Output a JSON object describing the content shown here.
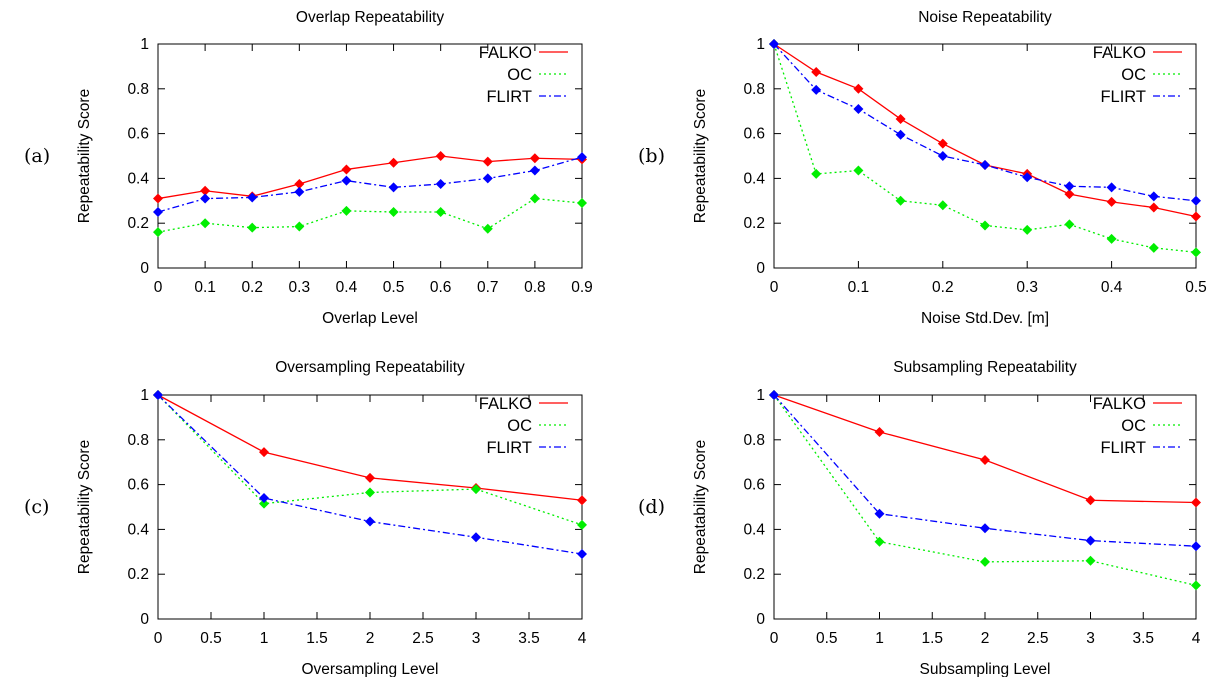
{
  "figure": {
    "panel_labels": [
      "(a)",
      "(b)",
      "(c)",
      "(d)"
    ]
  },
  "colors": {
    "FALKO": "#ff0000",
    "OC": "#00ee00",
    "FLIRT": "#0000ff",
    "axis": "#000000"
  },
  "chart_data": [
    {
      "type": "line",
      "title": "Overlap Repeatability",
      "xlabel": "Overlap Level",
      "ylabel": "Repeatability Score",
      "xlim": [
        0,
        0.9
      ],
      "ylim": [
        0,
        1
      ],
      "xticks": [
        0,
        0.1,
        0.2,
        0.3,
        0.4,
        0.5,
        0.6,
        0.7,
        0.8,
        0.9
      ],
      "xtick_labels": [
        "0",
        "0.1",
        "0.2",
        "0.3",
        "0.4",
        "0.5",
        "0.6",
        "0.7",
        "0.8",
        "0.9"
      ],
      "yticks": [
        0,
        0.2,
        0.4,
        0.6,
        0.8,
        1
      ],
      "ytick_labels": [
        "0",
        "0.2",
        "0.4",
        "0.6",
        "0.8",
        "1"
      ],
      "grid": false,
      "legend_position": "top-right",
      "x": [
        0,
        0.1,
        0.2,
        0.3,
        0.4,
        0.5,
        0.6,
        0.7,
        0.8,
        0.9
      ],
      "series": [
        {
          "name": "FALKO",
          "style": "solid",
          "values": [
            0.31,
            0.345,
            0.32,
            0.375,
            0.44,
            0.47,
            0.5,
            0.475,
            0.49,
            0.485
          ]
        },
        {
          "name": "OC",
          "style": "dotted",
          "values": [
            0.16,
            0.2,
            0.18,
            0.185,
            0.255,
            0.25,
            0.25,
            0.175,
            0.31,
            0.29
          ]
        },
        {
          "name": "FLIRT",
          "style": "dashdot",
          "values": [
            0.25,
            0.31,
            0.315,
            0.34,
            0.39,
            0.36,
            0.375,
            0.4,
            0.435,
            0.495
          ]
        }
      ]
    },
    {
      "type": "line",
      "title": "Noise Repeatability",
      "xlabel": "Noise Std.Dev. [m]",
      "ylabel": "Repeatability Score",
      "xlim": [
        0,
        0.5
      ],
      "ylim": [
        0,
        1
      ],
      "xticks": [
        0,
        0.1,
        0.2,
        0.3,
        0.4,
        0.5
      ],
      "xtick_labels": [
        "0",
        "0.1",
        "0.2",
        "0.3",
        "0.4",
        "0.5"
      ],
      "yticks": [
        0,
        0.2,
        0.4,
        0.6,
        0.8,
        1
      ],
      "ytick_labels": [
        "0",
        "0.2",
        "0.4",
        "0.6",
        "0.8",
        "1"
      ],
      "grid": false,
      "legend_position": "top-right",
      "x": [
        0,
        0.05,
        0.1,
        0.15,
        0.2,
        0.25,
        0.3,
        0.35,
        0.4,
        0.45,
        0.5
      ],
      "series": [
        {
          "name": "FALKO",
          "style": "solid",
          "values": [
            1.0,
            0.875,
            0.8,
            0.665,
            0.555,
            0.46,
            0.42,
            0.33,
            0.295,
            0.27,
            0.23
          ]
        },
        {
          "name": "OC",
          "style": "dotted",
          "values": [
            1.0,
            0.42,
            0.435,
            0.3,
            0.28,
            0.19,
            0.17,
            0.195,
            0.13,
            0.09,
            0.07
          ]
        },
        {
          "name": "FLIRT",
          "style": "dashdot",
          "values": [
            1.0,
            0.795,
            0.71,
            0.595,
            0.5,
            0.46,
            0.405,
            0.365,
            0.36,
            0.32,
            0.3
          ]
        }
      ]
    },
    {
      "type": "line",
      "title": "Oversampling Repeatability",
      "xlabel": "Oversampling Level",
      "ylabel": "Repeatability Score",
      "xlim": [
        0,
        4
      ],
      "ylim": [
        0,
        1
      ],
      "xticks": [
        0,
        0.5,
        1,
        1.5,
        2,
        2.5,
        3,
        3.5,
        4
      ],
      "xtick_labels": [
        "0",
        "0.5",
        "1",
        "1.5",
        "2",
        "2.5",
        "3",
        "3.5",
        "4"
      ],
      "yticks": [
        0,
        0.2,
        0.4,
        0.6,
        0.8,
        1
      ],
      "ytick_labels": [
        "0",
        "0.2",
        "0.4",
        "0.6",
        "0.8",
        "1"
      ],
      "grid": false,
      "legend_position": "top-right",
      "x": [
        0,
        1,
        2,
        3,
        4
      ],
      "series": [
        {
          "name": "FALKO",
          "style": "solid",
          "values": [
            1.0,
            0.745,
            0.63,
            0.585,
            0.53
          ]
        },
        {
          "name": "OC",
          "style": "dotted",
          "values": [
            1.0,
            0.515,
            0.565,
            0.58,
            0.42
          ]
        },
        {
          "name": "FLIRT",
          "style": "dashdot",
          "values": [
            1.0,
            0.54,
            0.435,
            0.365,
            0.29
          ]
        }
      ]
    },
    {
      "type": "line",
      "title": "Subsampling Repeatability",
      "xlabel": "Subsampling Level",
      "ylabel": "Repeatability Score",
      "xlim": [
        0,
        4
      ],
      "ylim": [
        0,
        1
      ],
      "xticks": [
        0,
        0.5,
        1,
        1.5,
        2,
        2.5,
        3,
        3.5,
        4
      ],
      "xtick_labels": [
        "0",
        "0.5",
        "1",
        "1.5",
        "2",
        "2.5",
        "3",
        "3.5",
        "4"
      ],
      "yticks": [
        0,
        0.2,
        0.4,
        0.6,
        0.8,
        1
      ],
      "ytick_labels": [
        "0",
        "0.2",
        "0.4",
        "0.6",
        "0.8",
        "1"
      ],
      "grid": false,
      "legend_position": "top-right",
      "x": [
        0,
        1,
        2,
        3,
        4
      ],
      "series": [
        {
          "name": "FALKO",
          "style": "solid",
          "values": [
            1.0,
            0.835,
            0.71,
            0.53,
            0.52
          ]
        },
        {
          "name": "OC",
          "style": "dotted",
          "values": [
            1.0,
            0.345,
            0.255,
            0.26,
            0.15
          ]
        },
        {
          "name": "FLIRT",
          "style": "dashdot",
          "values": [
            1.0,
            0.47,
            0.405,
            0.35,
            0.325
          ]
        }
      ]
    }
  ]
}
